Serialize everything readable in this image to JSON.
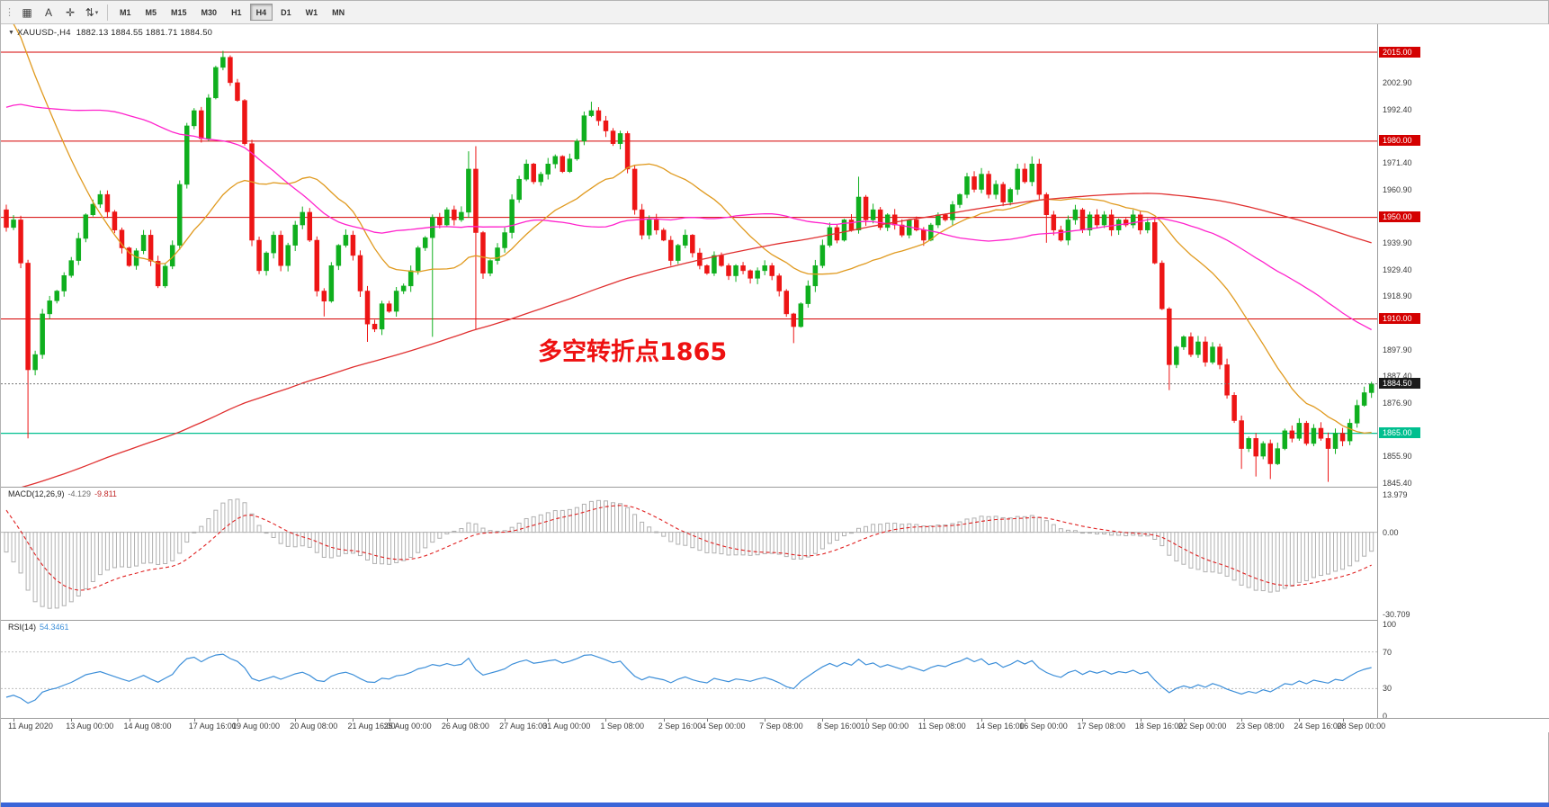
{
  "window": {
    "bottom_bar_color": "#3a65d8"
  },
  "toolbar": {
    "grip": "⋮",
    "tools": [
      {
        "name": "chart-mode",
        "glyph": "▦"
      },
      {
        "name": "text-tool",
        "glyph": "A"
      },
      {
        "name": "crosshair",
        "glyph": "✛"
      },
      {
        "name": "indicator-arrows",
        "glyph": "⇅",
        "caret": "▾"
      }
    ],
    "timeframes": [
      {
        "label": "M1"
      },
      {
        "label": "M5"
      },
      {
        "label": "M15"
      },
      {
        "label": "M30"
      },
      {
        "label": "H1"
      },
      {
        "label": "H4",
        "active": true
      },
      {
        "label": "D1"
      },
      {
        "label": "W1"
      },
      {
        "label": "MN"
      }
    ]
  },
  "chart": {
    "collapse_arrow": "▼",
    "symbol": "XAUUSD-,H4",
    "ohlc": "1882.13 1884.55 1881.71 1884.50",
    "annotation": {
      "text": "多空转折点1865",
      "color": "#ee1111"
    },
    "price_axis": {
      "gray_labels": [
        2002.9,
        1992.4,
        1971.4,
        1960.9,
        1939.9,
        1929.4,
        1918.9,
        1897.9,
        1887.4,
        1876.9,
        1855.9,
        1845.4
      ],
      "level_badges": [
        {
          "price": 2015.0,
          "label": "2015.00",
          "color": "#d40000"
        },
        {
          "price": 1980.0,
          "label": "1980.00",
          "color": "#d40000"
        },
        {
          "price": 1950.0,
          "label": "1950.00",
          "color": "#d40000"
        },
        {
          "price": 1910.0,
          "label": "1910.00",
          "color": "#d40000"
        },
        {
          "price": 1865.0,
          "label": "1865.00",
          "color": "#00bf8f"
        }
      ],
      "current_badge": {
        "price": 1884.5,
        "label": "1884.50",
        "color": "#1b1b1b"
      }
    }
  },
  "macd_panel": {
    "name": "MACD(12,26,9)",
    "main_value": "-4.129",
    "signal_value": "-9.811",
    "axis_labels": [
      {
        "value": 13.979,
        "text": "13.979"
      },
      {
        "value": 0,
        "text": "0.00"
      },
      {
        "value": -30.709,
        "text": "-30.709"
      }
    ]
  },
  "rsi_panel": {
    "name": "RSI(14)",
    "value": "54.3461",
    "axis_labels": [
      {
        "value": 100,
        "text": "100"
      },
      {
        "value": 70,
        "text": "70"
      },
      {
        "value": 30,
        "text": "30"
      },
      {
        "value": 0,
        "text": "0"
      }
    ]
  },
  "time_axis": {
    "labels": [
      {
        "text": "11 Aug 2020",
        "i": 1
      },
      {
        "text": "13 Aug 00:00",
        "i": 9
      },
      {
        "text": "14 Aug 08:00",
        "i": 17
      },
      {
        "text": "17 Aug 16:00",
        "i": 26
      },
      {
        "text": "19 Aug 00:00",
        "i": 32
      },
      {
        "text": "20 Aug 08:00",
        "i": 40
      },
      {
        "text": "21 Aug 16:00",
        "i": 48
      },
      {
        "text": "25 Aug 00:00",
        "i": 53
      },
      {
        "text": "26 Aug 08:00",
        "i": 61
      },
      {
        "text": "27 Aug 16:00",
        "i": 69
      },
      {
        "text": "31 Aug 00:00",
        "i": 75
      },
      {
        "text": "1 Sep 08:00",
        "i": 83
      },
      {
        "text": "2 Sep 16:00",
        "i": 91
      },
      {
        "text": "4 Sep 00:00",
        "i": 97
      },
      {
        "text": "7 Sep 08:00",
        "i": 105
      },
      {
        "text": "8 Sep 16:00",
        "i": 113
      },
      {
        "text": "10 Sep 00:00",
        "i": 119
      },
      {
        "text": "11 Sep 08:00",
        "i": 127
      },
      {
        "text": "14 Sep 16:00",
        "i": 135
      },
      {
        "text": "16 Sep 00:00",
        "i": 141
      },
      {
        "text": "17 Sep 08:00",
        "i": 149
      },
      {
        "text": "18 Sep 16:00",
        "i": 157
      },
      {
        "text": "22 Sep 00:00",
        "i": 163
      },
      {
        "text": "23 Sep 08:00",
        "i": 171
      },
      {
        "text": "24 Sep 16:00",
        "i": 179
      },
      {
        "text": "28 Sep 00:00",
        "i": 185
      }
    ]
  },
  "chart_data": {
    "type": "candlestick",
    "symbol": "XAUUSD",
    "timeframe": "H4",
    "last": {
      "open": 1882.13,
      "high": 1884.55,
      "low": 1881.71,
      "close": 1884.5
    },
    "visible_candles": 190,
    "y_axis": {
      "min": 1845.4,
      "max": 2019.0,
      "tick_step": 10.5
    },
    "h_lines": [
      2015.0,
      1980.0,
      1950.0,
      1910.0
    ],
    "support_line": 1865.0,
    "current_price": 1884.5,
    "noise": 1.4,
    "candle_colors": {
      "up": "#0faf1e",
      "down": "#ed1515"
    },
    "moving_averages": [
      {
        "period": 20,
        "color": "#e09a1f"
      },
      {
        "period": 50,
        "color": "#ff22cc"
      },
      {
        "period": 200,
        "color": "#e03030"
      }
    ],
    "prehistory_keyframes": [
      [
        -200,
        1728
      ],
      [
        -160,
        1747
      ],
      [
        -120,
        1778
      ],
      [
        -80,
        1840
      ],
      [
        -50,
        1906
      ],
      [
        -30,
        1986
      ],
      [
        -15,
        2051
      ],
      [
        -8,
        2062
      ],
      [
        -4,
        2014
      ],
      [
        -1,
        1953
      ]
    ],
    "price_keyframes": [
      [
        0,
        1946
      ],
      [
        1,
        1949
      ],
      [
        2,
        1932
      ],
      [
        3,
        1890
      ],
      [
        4,
        1896
      ],
      [
        5,
        1912
      ],
      [
        7,
        1921
      ],
      [
        9,
        1933
      ],
      [
        11,
        1951
      ],
      [
        13,
        1959
      ],
      [
        15,
        1945
      ],
      [
        17,
        1931
      ],
      [
        19,
        1943
      ],
      [
        21,
        1923
      ],
      [
        23,
        1939
      ],
      [
        25,
        1986
      ],
      [
        26,
        1992
      ],
      [
        27,
        1981
      ],
      [
        28,
        1997
      ],
      [
        29,
        2009
      ],
      [
        30,
        2013
      ],
      [
        31,
        2003
      ],
      [
        32,
        1996
      ],
      [
        33,
        1979
      ],
      [
        34,
        1941
      ],
      [
        35,
        1929
      ],
      [
        36,
        1936
      ],
      [
        37,
        1943
      ],
      [
        38,
        1931
      ],
      [
        39,
        1939
      ],
      [
        40,
        1947
      ],
      [
        41,
        1952
      ],
      [
        42,
        1941
      ],
      [
        43,
        1921
      ],
      [
        44,
        1917
      ],
      [
        45,
        1931
      ],
      [
        46,
        1939
      ],
      [
        47,
        1943
      ],
      [
        48,
        1935
      ],
      [
        49,
        1921
      ],
      [
        50,
        1908
      ],
      [
        51,
        1906
      ],
      [
        52,
        1916
      ],
      [
        53,
        1913
      ],
      [
        54,
        1921
      ],
      [
        55,
        1923
      ],
      [
        56,
        1929
      ],
      [
        57,
        1938
      ],
      [
        58,
        1942
      ],
      [
        59,
        1950
      ],
      [
        60,
        1947
      ],
      [
        61,
        1953
      ],
      [
        62,
        1949
      ],
      [
        63,
        1952
      ],
      [
        64,
        1969
      ],
      [
        65,
        1944
      ],
      [
        66,
        1928
      ],
      [
        67,
        1933
      ],
      [
        68,
        1938
      ],
      [
        69,
        1944
      ],
      [
        70,
        1957
      ],
      [
        71,
        1965
      ],
      [
        72,
        1971
      ],
      [
        73,
        1964
      ],
      [
        74,
        1967
      ],
      [
        75,
        1971
      ],
      [
        76,
        1974
      ],
      [
        77,
        1968
      ],
      [
        78,
        1973
      ],
      [
        79,
        1980
      ],
      [
        80,
        1990
      ],
      [
        81,
        1992
      ],
      [
        82,
        1988
      ],
      [
        83,
        1984
      ],
      [
        84,
        1979
      ],
      [
        85,
        1983
      ],
      [
        86,
        1969
      ],
      [
        87,
        1953
      ],
      [
        88,
        1943
      ],
      [
        89,
        1949
      ],
      [
        90,
        1945
      ],
      [
        91,
        1941
      ],
      [
        92,
        1933
      ],
      [
        93,
        1939
      ],
      [
        94,
        1943
      ],
      [
        95,
        1936
      ],
      [
        96,
        1931
      ],
      [
        97,
        1928
      ],
      [
        98,
        1935
      ],
      [
        99,
        1931
      ],
      [
        100,
        1927
      ],
      [
        101,
        1931
      ],
      [
        102,
        1929
      ],
      [
        103,
        1926
      ],
      [
        104,
        1929
      ],
      [
        105,
        1931
      ],
      [
        106,
        1927
      ],
      [
        107,
        1921
      ],
      [
        108,
        1912
      ],
      [
        109,
        1907
      ],
      [
        110,
        1916
      ],
      [
        111,
        1923
      ],
      [
        112,
        1931
      ],
      [
        113,
        1939
      ],
      [
        114,
        1946
      ],
      [
        115,
        1941
      ],
      [
        116,
        1949
      ],
      [
        117,
        1945
      ],
      [
        118,
        1958
      ],
      [
        119,
        1949
      ],
      [
        120,
        1953
      ],
      [
        121,
        1946
      ],
      [
        122,
        1951
      ],
      [
        123,
        1947
      ],
      [
        124,
        1943
      ],
      [
        125,
        1949
      ],
      [
        126,
        1945
      ],
      [
        127,
        1941
      ],
      [
        128,
        1947
      ],
      [
        129,
        1951
      ],
      [
        130,
        1949
      ],
      [
        131,
        1955
      ],
      [
        132,
        1959
      ],
      [
        133,
        1966
      ],
      [
        134,
        1961
      ],
      [
        135,
        1967
      ],
      [
        136,
        1959
      ],
      [
        137,
        1963
      ],
      [
        138,
        1956
      ],
      [
        139,
        1961
      ],
      [
        140,
        1969
      ],
      [
        141,
        1964
      ],
      [
        142,
        1971
      ],
      [
        143,
        1959
      ],
      [
        144,
        1951
      ],
      [
        145,
        1945
      ],
      [
        146,
        1941
      ],
      [
        147,
        1949
      ],
      [
        148,
        1953
      ],
      [
        149,
        1945
      ],
      [
        150,
        1951
      ],
      [
        151,
        1947
      ],
      [
        152,
        1951
      ],
      [
        153,
        1945
      ],
      [
        154,
        1949
      ],
      [
        155,
        1947
      ],
      [
        156,
        1951
      ],
      [
        157,
        1945
      ],
      [
        158,
        1948
      ],
      [
        159,
        1932
      ],
      [
        160,
        1914
      ],
      [
        161,
        1892
      ],
      [
        162,
        1899
      ],
      [
        163,
        1903
      ],
      [
        164,
        1896
      ],
      [
        165,
        1901
      ],
      [
        166,
        1893
      ],
      [
        167,
        1899
      ],
      [
        168,
        1892
      ],
      [
        169,
        1880
      ],
      [
        170,
        1870
      ],
      [
        171,
        1859
      ],
      [
        172,
        1863
      ],
      [
        173,
        1856
      ],
      [
        174,
        1861
      ],
      [
        175,
        1853
      ],
      [
        176,
        1859
      ],
      [
        177,
        1866
      ],
      [
        178,
        1863
      ],
      [
        179,
        1869
      ],
      [
        180,
        1861
      ],
      [
        181,
        1867
      ],
      [
        182,
        1863
      ],
      [
        183,
        1859
      ],
      [
        184,
        1865
      ],
      [
        185,
        1862
      ],
      [
        186,
        1869
      ],
      [
        187,
        1876
      ],
      [
        188,
        1881
      ],
      [
        189,
        1884.5
      ]
    ],
    "wick_overrides": {
      "3": {
        "low": 1863
      },
      "30": {
        "high": 2015.5
      },
      "44": {
        "low": 1911
      },
      "50": {
        "low": 1901
      },
      "59": {
        "low": 1903
      },
      "64": {
        "high": 1976
      },
      "65": {
        "high": 1978,
        "low": 1906
      },
      "81": {
        "high": 1995.5
      },
      "109": {
        "low": 1900.5
      },
      "118": {
        "high": 1966
      },
      "142": {
        "high": 1974
      },
      "144": {
        "low": 1940
      },
      "161": {
        "low": 1882
      },
      "171": {
        "low": 1851
      },
      "173": {
        "low": 1848
      },
      "175": {
        "low": 1847
      },
      "183": {
        "low": 1845.9
      }
    },
    "macd": {
      "fast": 12,
      "slow": 26,
      "signal": 9,
      "scale_max": 13.979,
      "scale_min": -30.709,
      "current_main": -4.129,
      "current_signal": -9.811
    },
    "rsi": {
      "period": 14,
      "current": 54.3461,
      "levels": [
        70,
        30
      ],
      "scale": [
        0,
        100
      ]
    }
  }
}
